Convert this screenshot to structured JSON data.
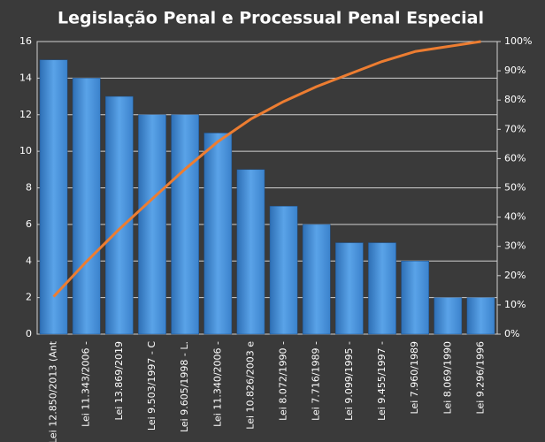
{
  "chart_data": {
    "type": "bar",
    "title": "Legislação  Penal  e Processual  Penal  Especial",
    "categories": [
      "Lei 12.850/2013 (Ant",
      "Lei 11.343/2006 -",
      "Lei 13.869/2019",
      "Lei 9.503/1997 - C",
      "Lei 9.605/1998 - L.",
      "Lei 11.340/2006 -",
      "Lei 10.826/2003 e",
      "Lei 8.072/1990 -",
      "Lei 7.716/1989 -",
      "Lei 9.099/1995 -",
      "Lei 9.455/1997 -",
      "Lei 7.960/1989",
      "Lei 8.069/1990",
      "Lei 9.296/1996"
    ],
    "series": [
      {
        "color": "#4a90d9",
        "values": [
          15,
          14,
          13,
          12,
          12,
          11,
          9,
          7,
          6,
          5,
          5,
          4,
          2,
          2
        ]
      },
      {
        "type": "line",
        "axis": "y2",
        "color": "#ed7d31",
        "values": [
          12.8,
          24.8,
          35.9,
          46.2,
          56.4,
          65.8,
          73.5,
          79.5,
          84.6,
          88.9,
          93.2,
          96.6,
          98.3,
          100
        ]
      }
    ],
    "ylim": [
      0,
      16
    ],
    "yticks": [
      0,
      2,
      4,
      6,
      8,
      10,
      12,
      14,
      16
    ],
    "y2lim": [
      0,
      100
    ],
    "y2ticks": [
      {
        "value": 0,
        "label": "0%"
      },
      {
        "value": 10,
        "label": "10%"
      },
      {
        "value": 20,
        "label": "20%"
      },
      {
        "value": 30,
        "label": "30%"
      },
      {
        "value": 40,
        "label": "40%"
      },
      {
        "value": 50,
        "label": "50%"
      },
      {
        "value": 60,
        "label": "60%"
      },
      {
        "value": 70,
        "label": "70%"
      },
      {
        "value": 80,
        "label": "80%"
      },
      {
        "value": 90,
        "label": "90%"
      },
      {
        "value": 100,
        "label": "100%"
      }
    ],
    "grid": true
  }
}
